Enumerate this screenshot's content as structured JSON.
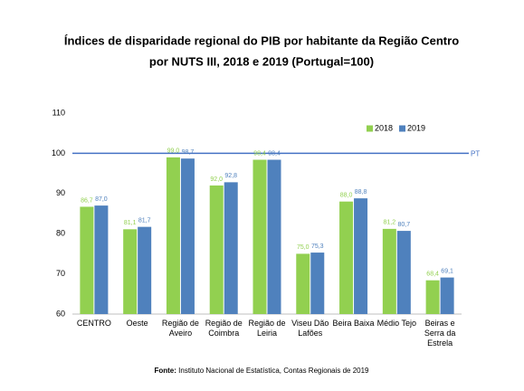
{
  "chart_data": {
    "type": "bar",
    "title": [
      "Índices de disparidade regional do PIB por habitante da Região Centro",
      "por NUTS III, 2018 e 2019 (Portugal=100)"
    ],
    "categories": [
      "CENTRO",
      "Oeste",
      "Região de Aveiro",
      "Região de Coimbra",
      "Região de Leiria",
      "Viseu Dão Lafões",
      "Beira Baixa",
      "Médio Tejo",
      "Beiras e Serra da Estrela"
    ],
    "series": [
      {
        "name": "2018",
        "color": "#92d050",
        "values": [
          86.7,
          81.1,
          99.0,
          92.0,
          98.4,
          75.0,
          88.0,
          81.2,
          68.4
        ],
        "value_labels": [
          "86,7",
          "81,1",
          "99,0",
          "92,0",
          "98,4",
          "75,0",
          "88,0",
          "81,2",
          "68,4"
        ]
      },
      {
        "name": "2019",
        "color": "#4f81bd",
        "values": [
          87.0,
          81.7,
          98.7,
          92.8,
          98.4,
          75.3,
          88.8,
          80.7,
          69.1
        ],
        "value_labels": [
          "87,0",
          "81,7",
          "98,7",
          "92,8",
          "98,4",
          "75,3",
          "88,8",
          "80,7",
          "69,1"
        ]
      }
    ],
    "ylim": [
      60,
      110
    ],
    "yticks": [
      60,
      70,
      80,
      90,
      100,
      110
    ],
    "reference_line": {
      "value": 100,
      "label": "PT",
      "color": "#4472c4"
    },
    "legend": "top-right",
    "source_label": "Fonte:",
    "source": "Instituto Nacional de Estatística, Contas Regionais de 2019"
  }
}
